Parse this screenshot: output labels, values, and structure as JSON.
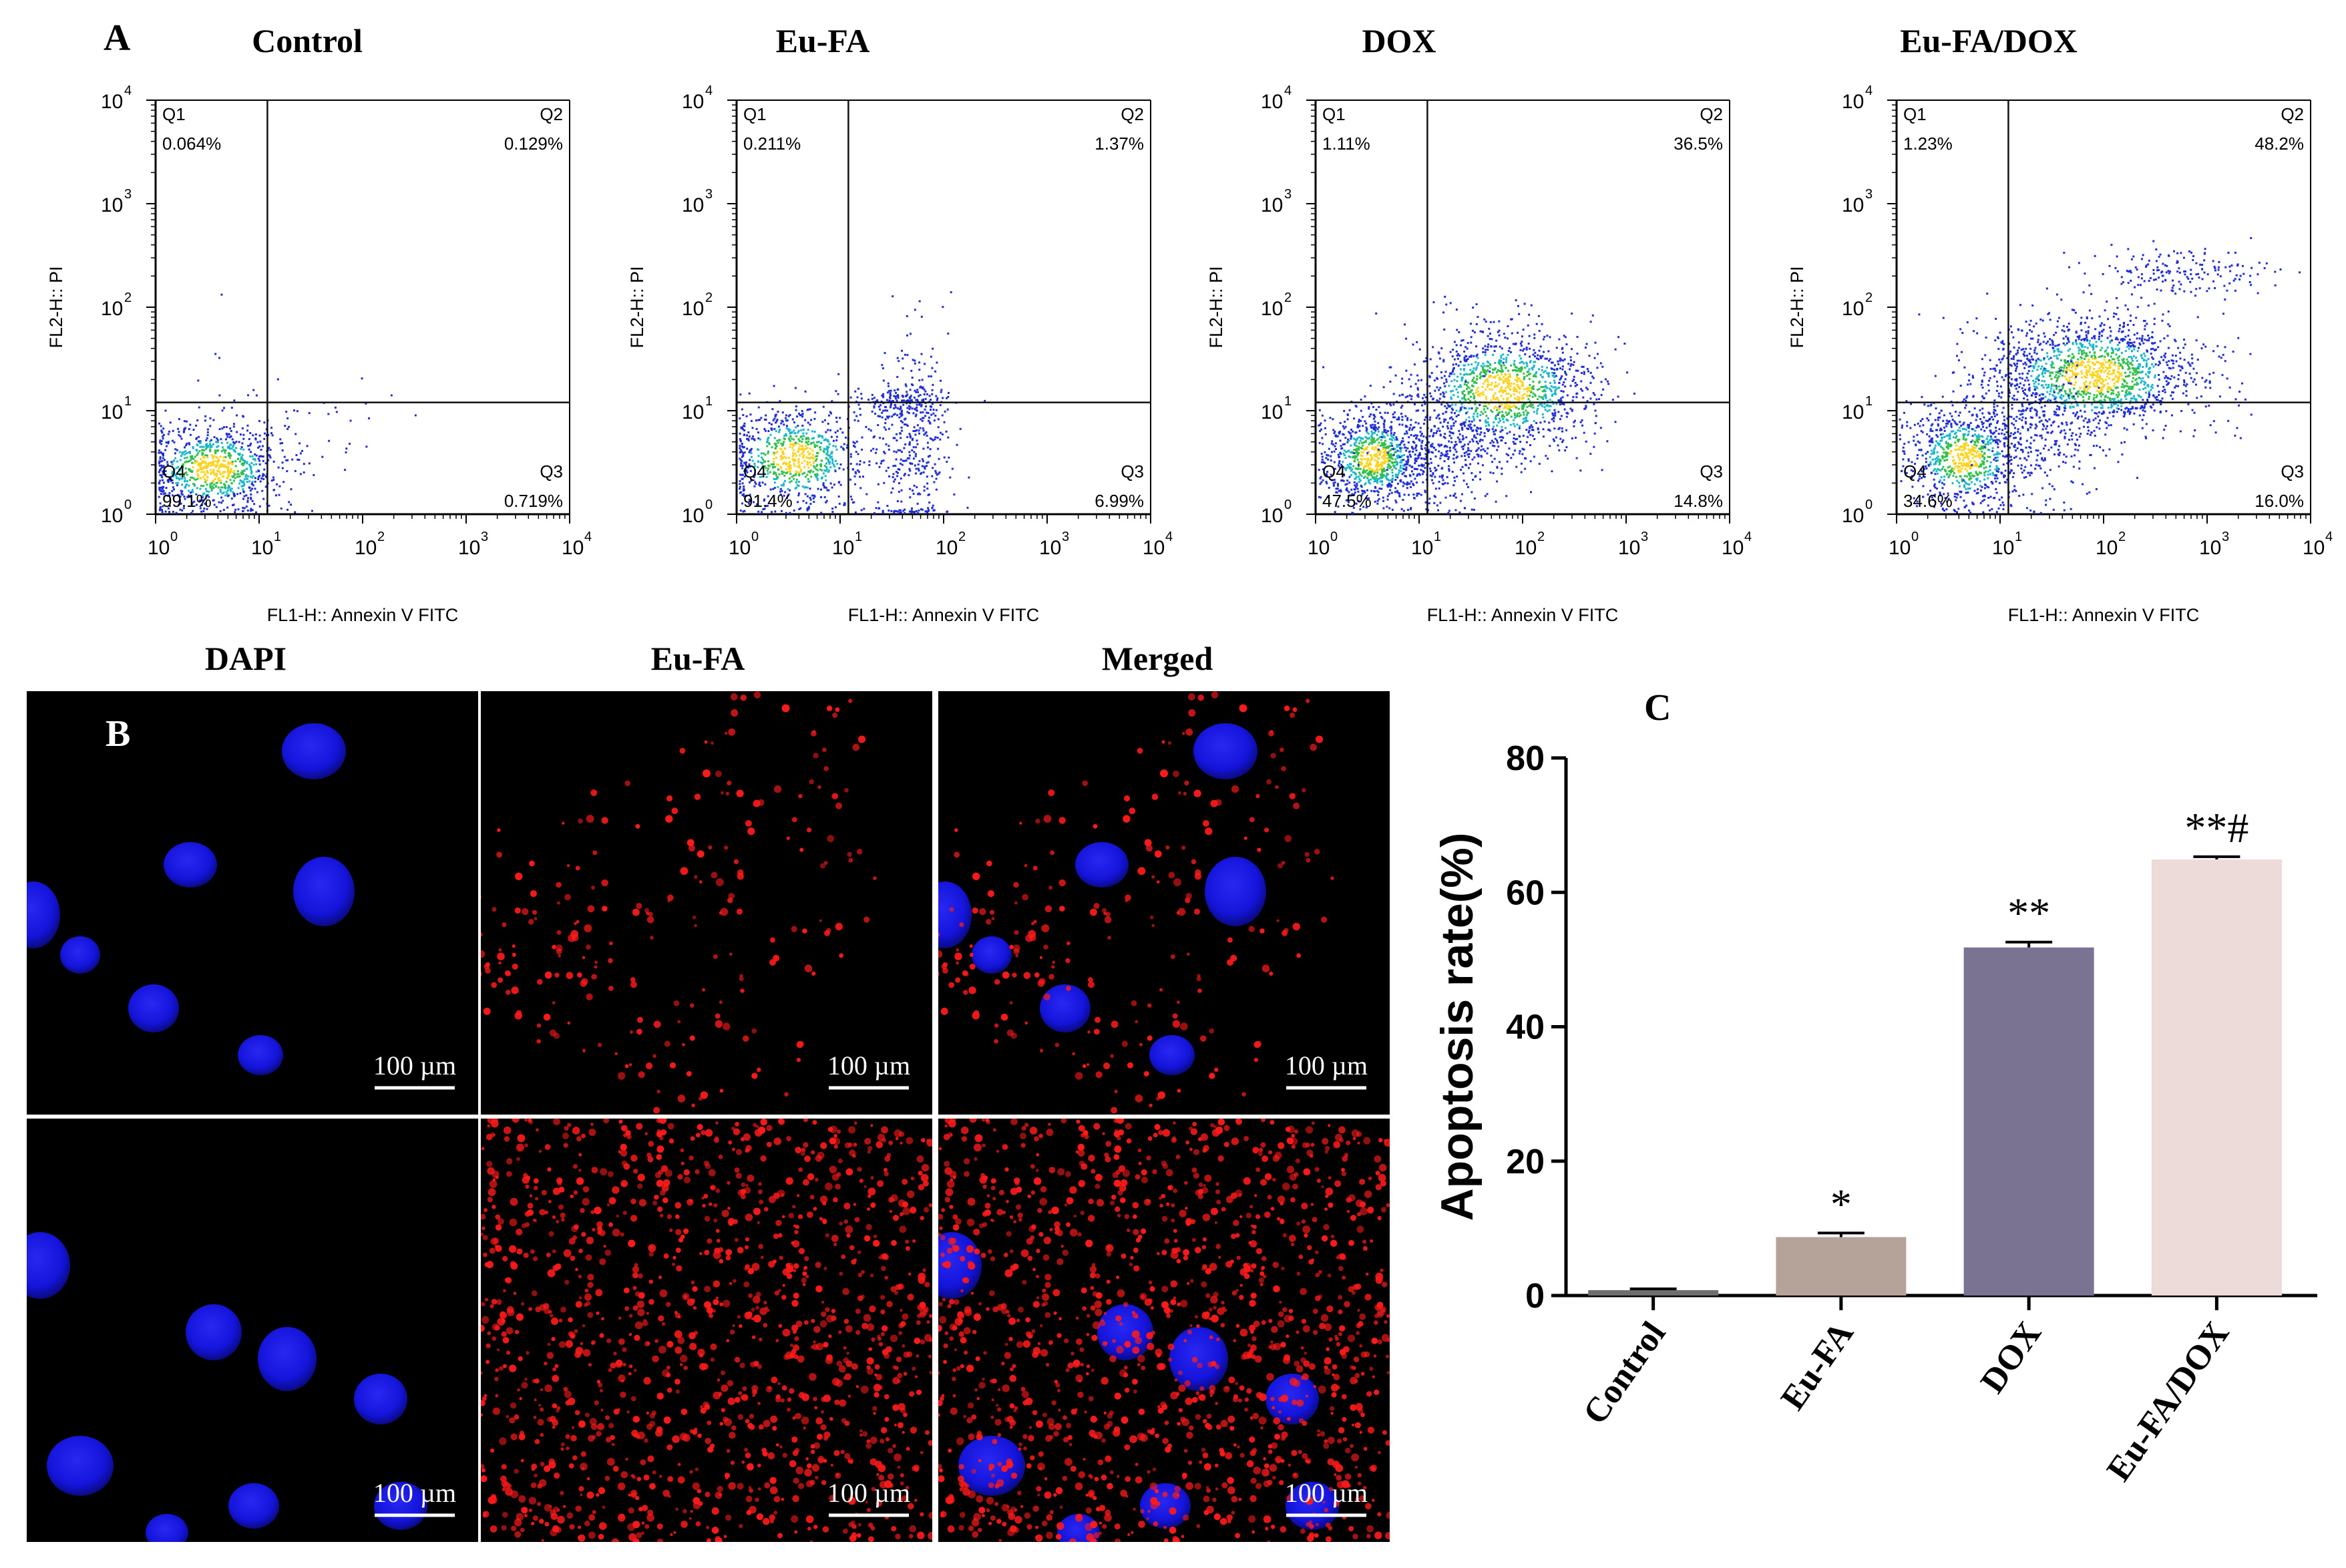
{
  "panel_a": {
    "letter": "A",
    "quadrant_names": [
      "Q1",
      "Q2",
      "Q3",
      "Q4"
    ],
    "plots": [
      {
        "title": "Control",
        "q1": "0.064%",
        "q2": "0.129%",
        "q3": "0.719%",
        "q4": "99.1%"
      },
      {
        "title": "Eu-FA",
        "q1": "0.211%",
        "q2": "1.37%",
        "q3": "6.99%",
        "q4": "91.4%"
      },
      {
        "title": "DOX",
        "q1": "1.11%",
        "q2": "36.5%",
        "q3": "14.8%",
        "q4": "47.5%"
      },
      {
        "title": "Eu-FA/DOX",
        "q1": "1.23%",
        "q2": "48.2%",
        "q3": "16.0%",
        "q4": "34.6%"
      }
    ],
    "xlabel": "FL1-H:: Annexin V FITC",
    "ylabel": "FL2-H:: PI",
    "tick_base": "10",
    "tick_exponents": [
      "0",
      "1",
      "2",
      "3",
      "4"
    ]
  },
  "panel_b": {
    "letter": "B",
    "columns": [
      "DAPI",
      "Eu-FA",
      "Merged"
    ],
    "scale_bar": "100 µm",
    "colors": {
      "nucleus": "#1515e6",
      "particle": "#ff1a1a",
      "background": "#000000"
    }
  },
  "chart_data": {
    "type": "bar",
    "letter": "C",
    "categories": [
      "Control",
      "Eu-FA",
      "DOX",
      "Eu-FA/DOX"
    ],
    "values": [
      0.8,
      8.7,
      51.8,
      64.9
    ],
    "errors": [
      0.2,
      0.6,
      0.8,
      0.4
    ],
    "annotations": [
      "",
      "*",
      "**",
      "**#"
    ],
    "ylabel": "Apoptosis rate(%)",
    "ylim": [
      0,
      80
    ],
    "yticks": [
      "0",
      "20",
      "40",
      "60",
      "80"
    ],
    "colors": [
      "#6e6e6e",
      "#b5a39a",
      "#7a7391",
      "#eddbd9"
    ],
    "grid": false
  }
}
